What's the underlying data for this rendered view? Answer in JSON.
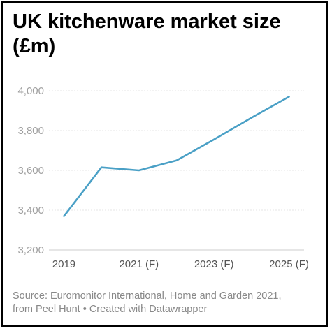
{
  "title": "UK kitchenware market size (£m)",
  "source_line_1": "Source: Euromonitor International, Home and Garden 2021,",
  "source_line_2": "from Peel Hunt • Created with Datawrapper",
  "chart_data": {
    "type": "line",
    "title": "UK kitchenware market size (£m)",
    "xlabel": "",
    "ylabel": "",
    "x": [
      2019,
      2020,
      2021,
      2022,
      2023,
      2024,
      2025
    ],
    "x_tick_values": [
      2019,
      2021,
      2023,
      2025
    ],
    "x_tick_labels": [
      "2019",
      "2021 (F)",
      "2023 (F)",
      "2025 (F)"
    ],
    "xlim": [
      2018.6,
      2025.4
    ],
    "series": [
      {
        "values": [
          3370,
          3615,
          3600,
          3650,
          3755,
          3865,
          3970
        ],
        "color": "#4aa0c6"
      }
    ],
    "ylim": [
      3200,
      4000
    ],
    "y_ticks": [
      3200,
      3400,
      3600,
      3800,
      4000
    ],
    "y_tick_labels": [
      "3,200",
      "3,400",
      "3,600",
      "3,800",
      "4,000"
    ],
    "grid": true,
    "legend": "none"
  }
}
